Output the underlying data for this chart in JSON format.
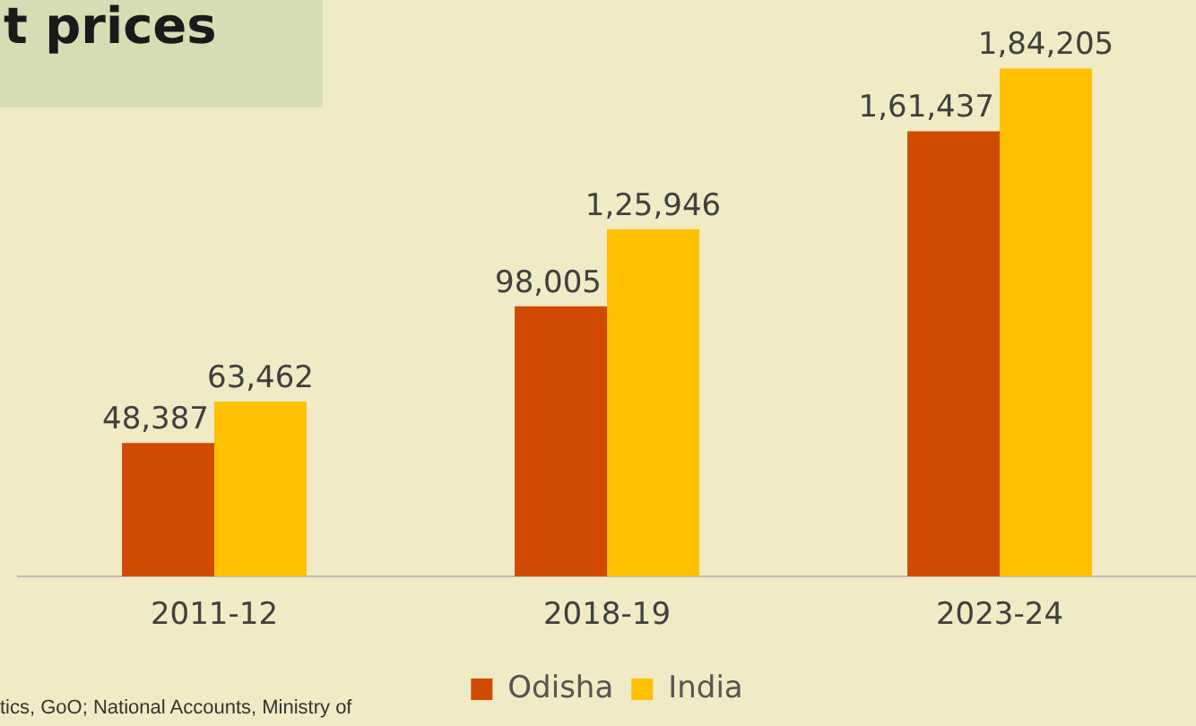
{
  "chart_data": {
    "type": "bar",
    "title": "t prices",
    "annotations": [
      "tics, GoO; National Accounts, Ministry of"
    ],
    "categories": [
      "2011-12",
      "2018-19",
      "2023-24"
    ],
    "series": [
      {
        "name": "Odisha",
        "color": "#d04a02",
        "values": [
          48387,
          98005,
          161437
        ],
        "value_labels": [
          "48,387",
          "98,005",
          "1,61,437"
        ]
      },
      {
        "name": "India",
        "color": "#ffc000",
        "values": [
          63462,
          125946,
          184205
        ],
        "value_labels": [
          "63,462",
          "1,25,946",
          "1,84,205"
        ]
      }
    ],
    "legend": "bottom",
    "grid": false,
    "tick_labels": "x"
  }
}
